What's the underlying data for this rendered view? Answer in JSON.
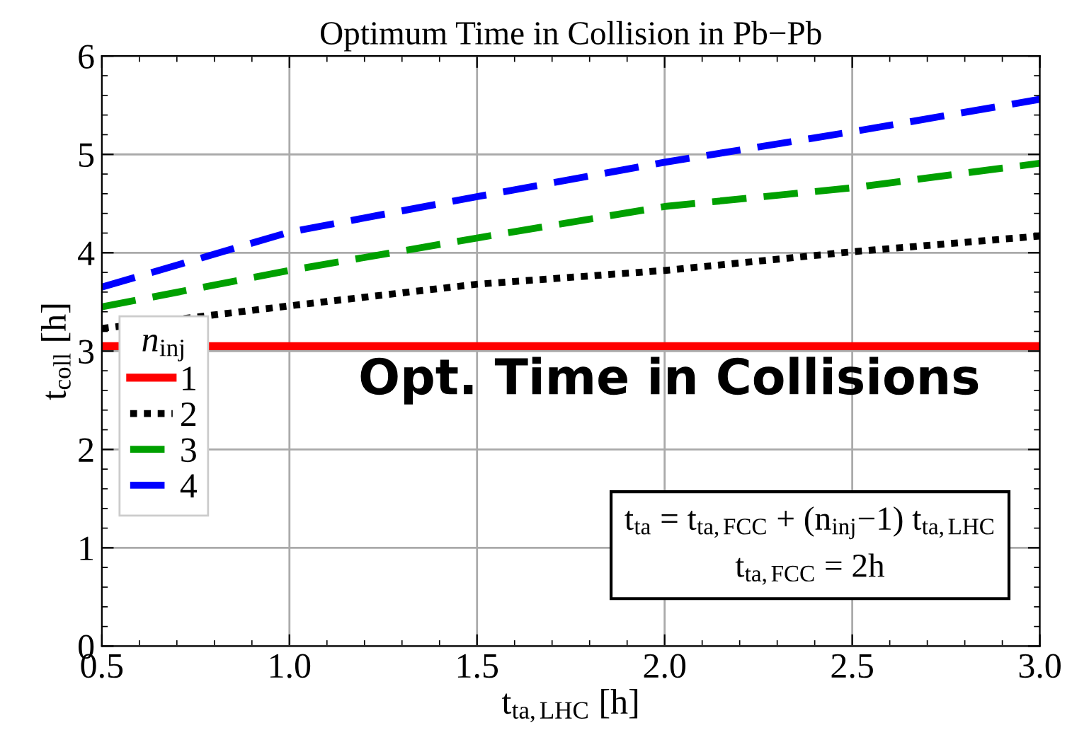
{
  "chart_data": {
    "type": "line",
    "title": "Optimum Time in Collision in Pb−Pb",
    "xlabel": "t$_{ta,LHC}$ [h]",
    "ylabel": "t$_{coll}$ [h]",
    "legend_title": "n$_{inj}$",
    "x": [
      0.5,
      1.0,
      1.5,
      2.0,
      2.5,
      3.0
    ],
    "series": [
      {
        "name": "1",
        "color": "#ff0000",
        "line_style": "solid",
        "values": [
          3.05,
          3.05,
          3.05,
          3.05,
          3.05,
          3.05
        ]
      },
      {
        "name": "2",
        "color": "#000000",
        "line_style": "dotted",
        "values": [
          3.23,
          3.46,
          3.68,
          3.82,
          4.01,
          4.17
        ]
      },
      {
        "name": "3",
        "color": "#00a000",
        "line_style": "dashed",
        "values": [
          3.45,
          3.82,
          4.15,
          4.47,
          4.66,
          4.91
        ]
      },
      {
        "name": "4",
        "color": "#0000ff",
        "line_style": "dashed",
        "values": [
          3.65,
          4.21,
          4.57,
          4.92,
          5.23,
          5.56
        ]
      }
    ],
    "xlim": [
      0.5,
      3.0
    ],
    "ylim": [
      0,
      6
    ],
    "xticks": [
      0.5,
      {
        "value": 1,
        "label": "1.0"
      },
      1.5,
      {
        "value": 2,
        "label": "2.0"
      },
      2.5,
      {
        "value": 3,
        "label": "3.0"
      }
    ],
    "yticks": [
      0,
      1,
      2,
      3,
      4,
      5,
      6
    ],
    "grid": true,
    "legend": "left",
    "marker": "none",
    "annotations": [
      "Opt. Time in Collisions",
      "t$_{ta}$ = t$_{ta,FCC}$ + (n$_{inj}$−1) t$_{ta,LHC}$",
      "t$_{ta,FCC}$ = 2h"
    ]
  }
}
